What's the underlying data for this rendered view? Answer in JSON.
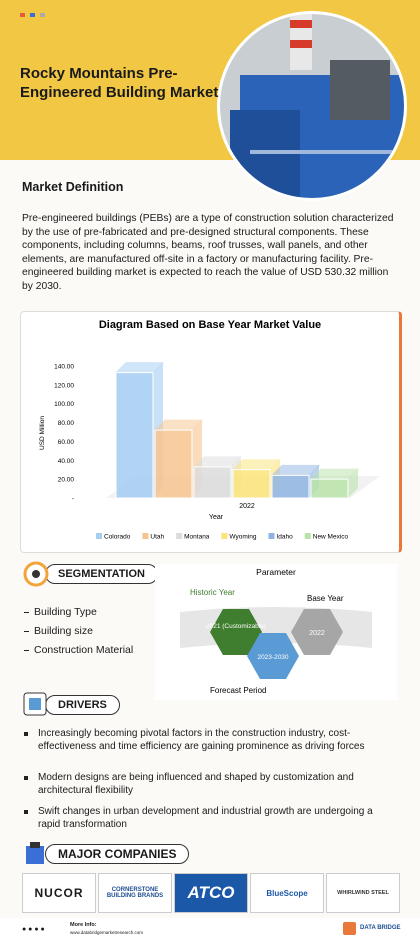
{
  "header": {
    "title": "Rocky Mountains Pre-Engineered Building Market"
  },
  "definition": {
    "heading": "Market Definition",
    "text": "Pre-engineered buildings (PEBs) are a type of construction solution characterized by the use of pre-fabricated and pre-designed structural components. These components, including columns, beams, roof trusses, wall panels, and other elements, are manufactured off-site in a factory or manufacturing facility. Pre-engineered building market is expected to reach the value of USD 530.32 million by 2030."
  },
  "chart_data": {
    "type": "bar",
    "title": "Diagram Based on Base Year Market Value",
    "categories": [
      "2022"
    ],
    "x_label": "Year",
    "y_label": "USD Million",
    "series": [
      {
        "name": "Colorado",
        "color": "#a5cdf2",
        "values": [
          133
        ]
      },
      {
        "name": "Utah",
        "color": "#f7c48f",
        "values": [
          72
        ]
      },
      {
        "name": "Montana",
        "color": "#dcdcdc",
        "values": [
          33
        ]
      },
      {
        "name": "Wyoming",
        "color": "#fde47a",
        "values": [
          30
        ]
      },
      {
        "name": "Idaho",
        "color": "#8fb4e3",
        "values": [
          24
        ]
      },
      {
        "name": "New Mexico",
        "color": "#b9e3a8",
        "values": [
          20
        ]
      }
    ],
    "ylim": [
      0,
      140
    ],
    "yticks": [
      {
        "value": 0,
        "label": "-"
      },
      {
        "value": 20,
        "label": "20.00"
      },
      {
        "value": 40,
        "label": "40.00"
      },
      {
        "value": 60,
        "label": "60.00"
      },
      {
        "value": 80,
        "label": "80.00"
      },
      {
        "value": 100,
        "label": "100.00"
      },
      {
        "value": 120,
        "label": "120.00"
      },
      {
        "value": 140,
        "label": "140.00"
      }
    ],
    "grid": false,
    "legend": "bottom"
  },
  "segmentation": {
    "heading": "SEGMENTATION",
    "items": [
      "Building Type",
      "Building size",
      "Construction Material"
    ],
    "parameter": {
      "title": "Parameter",
      "historic_label": "Historic Year",
      "historic_value": "2021 (Customizable)",
      "forecast_value": "2023-2030",
      "base_value": "2022",
      "base_label": "Base Year",
      "forecast_label": "Forecast Period"
    }
  },
  "drivers": {
    "heading": "DRIVERS",
    "items": [
      "Increasingly becoming pivotal factors in the construction industry, cost-effectiveness and time efficiency are gaining prominence as driving forces",
      "Modern designs are being influenced and shaped by customization and architectural flexibility",
      "Swift changes in urban development and industrial growth are undergoing a rapid transformation"
    ]
  },
  "companies": {
    "heading": "MAJOR COMPANIES",
    "names": [
      "NUCOR",
      "CORNERSTONE BUILDING BRANDS",
      "ATCO",
      "BlueScope",
      "WHIRLWIND STEEL"
    ]
  },
  "footer": {
    "more_info": "More Info:",
    "url": "www.databridgemarketresearch.com",
    "brand": "DATA BRIDGE"
  }
}
